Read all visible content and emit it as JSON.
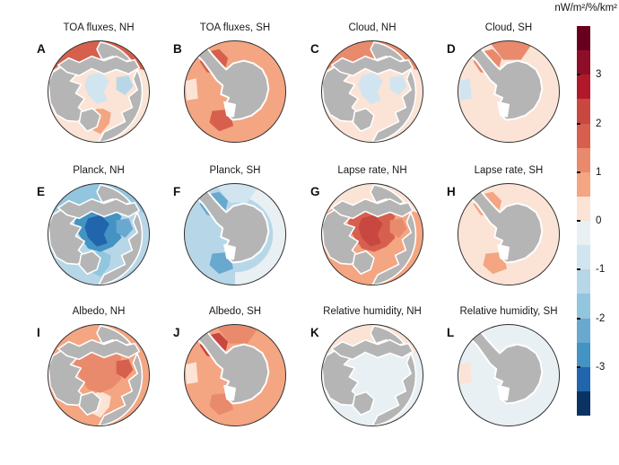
{
  "figure": {
    "colors": {
      "background": "#ffffff",
      "land": "#b5b5b5",
      "coastline": "#ffffff",
      "circle_outline": "#2f2f2f"
    }
  },
  "chart_data": {
    "type": "heatmap",
    "subtype": "polar_stereographic_map_grid",
    "units": "nW/m²/%/km²",
    "colorbar": {
      "label": "nW/m²/%/km²",
      "range": [
        -4,
        4
      ],
      "step": 0.5,
      "ticks": [
        3,
        2,
        1,
        0,
        -1,
        -2,
        -3
      ],
      "palette_top_to_bottom": [
        "#67001f",
        "#8f0e27",
        "#b2182b",
        "#c94741",
        "#d6604d",
        "#e98a6d",
        "#f4a582",
        "#fbe3d6",
        "#e9f0f4",
        "#d1e5f0",
        "#b7d7e8",
        "#92c5de",
        "#69a8cf",
        "#4393c3",
        "#2166ac",
        "#0a3363"
      ]
    },
    "panels": [
      {
        "label": "A",
        "title": "TOA fluxes, NH",
        "hemisphere": "NH",
        "regions": {
          "base": 0.3,
          "pacific": 1.8,
          "central": 0.2,
          "core": -0.7,
          "side": -1.3,
          "atlantic": 0.8
        }
      },
      {
        "label": "B",
        "title": "TOA fluxes, SH",
        "hemisphere": "SH",
        "regions": {
          "base": 0.8,
          "outer": 0.9,
          "top": 0.8,
          "weddell": 1.8,
          "ross": 1.8,
          "left": 0.1
        }
      },
      {
        "label": "C",
        "title": "Cloud, NH",
        "hemisphere": "NH",
        "regions": {
          "base": 0.2,
          "pacific": 1.2,
          "central": 0.4,
          "core": -0.7,
          "side": -0.9,
          "atlantic": 0.3
        }
      },
      {
        "label": "D",
        "title": "Cloud, SH",
        "hemisphere": "SH",
        "regions": {
          "base": 0.3,
          "outer": 0.2,
          "top": 1.5,
          "weddell": 1.4,
          "ross": 0.3,
          "left": -0.6
        }
      },
      {
        "label": "E",
        "title": "Planck, NH",
        "hemisphere": "NH",
        "regions": {
          "base": -1.2,
          "pacific": -1.7,
          "central": -2.7,
          "core": -3.3,
          "side": -2.2,
          "atlantic": -1.7
        }
      },
      {
        "label": "F",
        "title": "Planck, SH",
        "hemisphere": "SH",
        "regions": {
          "base": -1.1,
          "outer": -0.4,
          "top": -0.9,
          "weddell": -2.2,
          "ross": -2.2,
          "left": -1.3
        }
      },
      {
        "label": "G",
        "title": "Lapse rate, NH",
        "hemisphere": "NH",
        "regions": {
          "base": 0.6,
          "pacific": 0.4,
          "central": 1.7,
          "core": 2.3,
          "side": 1.2,
          "atlantic": 0.8
        }
      },
      {
        "label": "H",
        "title": "Lapse rate, SH",
        "hemisphere": "SH",
        "regions": {
          "base": 0.4,
          "outer": 0.4,
          "top": 0.4,
          "weddell": 0.9,
          "ross": 0.9,
          "left": 0.4
        }
      },
      {
        "label": "I",
        "title": "Albedo, NH",
        "hemisphere": "NH",
        "regions": {
          "base": 0.8,
          "pacific": 0.9,
          "central": 1.2,
          "core": 1.3,
          "side": 1.8,
          "atlantic": 0.4
        }
      },
      {
        "label": "J",
        "title": "Albedo, SH",
        "hemisphere": "SH",
        "regions": {
          "base": 1.0,
          "outer": 0.7,
          "top": 1.4,
          "weddell": 2.2,
          "ross": 1.4,
          "left": 0.4
        }
      },
      {
        "label": "K",
        "title": "Relative humidity, NH",
        "hemisphere": "NH",
        "regions": {
          "base": -0.3,
          "pacific": 0.5,
          "central": -0.4,
          "core": -0.4,
          "side": -0.3,
          "atlantic": -0.3
        }
      },
      {
        "label": "L",
        "title": "Relative humidity, SH",
        "hemisphere": "SH",
        "regions": {
          "base": -0.4,
          "outer": -0.3,
          "top": -0.4,
          "weddell": -0.4,
          "ross": -0.4,
          "left": 0.3
        }
      }
    ]
  }
}
